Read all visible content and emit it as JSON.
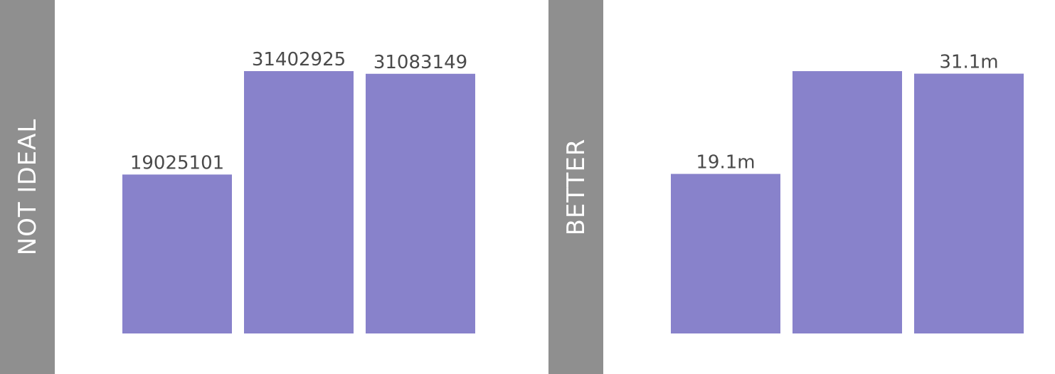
{
  "colors": {
    "bar": "#8882cb",
    "band": "#8f8f8f",
    "band_text": "#ffffff",
    "label_text": "#4a4a4a"
  },
  "panels": {
    "left": {
      "band_label": "NOT IDEAL"
    },
    "right": {
      "band_label": "BETTER"
    }
  },
  "chart_data": [
    {
      "type": "bar",
      "values": [
        19025101,
        31402925,
        31083149
      ],
      "data_labels": [
        "19025101",
        "31402925",
        "31083149"
      ],
      "ylim": [
        0,
        32000000
      ],
      "grid": false,
      "legend": "none"
    },
    {
      "type": "bar",
      "values": [
        19100000,
        31400000,
        31100000
      ],
      "data_labels": [
        "19.1m",
        "",
        "31.1m"
      ],
      "ylim": [
        0,
        32000000
      ],
      "grid": false,
      "legend": "none"
    }
  ]
}
